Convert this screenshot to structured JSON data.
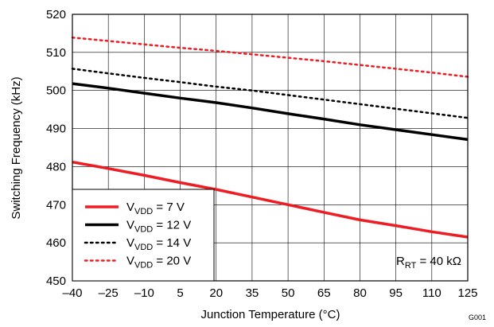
{
  "chart_data": {
    "type": "line",
    "title": "",
    "xlabel": "Junction Temperature (°C)",
    "ylabel": "Switching Frequency (kHz)",
    "xlim": [
      -40,
      125
    ],
    "ylim": [
      450,
      520
    ],
    "x_ticks": [
      -40,
      -25,
      -10,
      5,
      20,
      35,
      50,
      65,
      80,
      95,
      110,
      125
    ],
    "x_tick_labels": [
      "–40",
      "–25",
      "–10",
      "5",
      "20",
      "35",
      "50",
      "65",
      "80",
      "95",
      "110",
      "125"
    ],
    "y_ticks": [
      450,
      460,
      470,
      480,
      490,
      500,
      510,
      520
    ],
    "grid": true,
    "legend_position": "bottom-left",
    "series": [
      {
        "name_prefix": "V",
        "name_sub": "VDD",
        "name_suffix": " = 7 V",
        "style": "solid",
        "color": "#ee1c23",
        "width": "thick",
        "x": [
          -40,
          -25,
          -10,
          5,
          20,
          35,
          50,
          65,
          80,
          95,
          110,
          125
        ],
        "y": [
          481.2,
          479.5,
          477.7,
          475.8,
          474.0,
          472.0,
          470.0,
          468.0,
          466.0,
          464.5,
          462.9,
          461.5
        ]
      },
      {
        "name_prefix": "V",
        "name_sub": "VDD",
        "name_suffix": " = 12 V",
        "style": "solid",
        "color": "#000000",
        "width": "thick",
        "x": [
          -40,
          -25,
          -10,
          5,
          20,
          35,
          50,
          65,
          80,
          95,
          110,
          125
        ],
        "y": [
          501.8,
          500.6,
          499.3,
          498.0,
          496.8,
          495.4,
          493.9,
          492.5,
          491.0,
          489.7,
          488.4,
          487.1
        ]
      },
      {
        "name_prefix": "V",
        "name_sub": "VDD",
        "name_suffix": " = 14 V",
        "style": "dotted",
        "color": "#000000",
        "width": "medium",
        "x": [
          -40,
          -25,
          -10,
          5,
          20,
          35,
          50,
          65,
          80,
          95,
          110,
          125
        ],
        "y": [
          505.7,
          504.5,
          503.3,
          502.2,
          501.0,
          500.0,
          498.8,
          497.6,
          496.4,
          495.2,
          494.0,
          492.8
        ]
      },
      {
        "name_prefix": "V",
        "name_sub": "VDD",
        "name_suffix": " = 20 V",
        "style": "dotted",
        "color": "#ee1c23",
        "width": "medium",
        "x": [
          -40,
          -25,
          -10,
          5,
          20,
          35,
          50,
          65,
          80,
          95,
          110,
          125
        ],
        "y": [
          513.9,
          513.0,
          512.1,
          511.2,
          510.4,
          509.5,
          508.6,
          507.7,
          506.7,
          505.7,
          504.7,
          503.6
        ]
      }
    ],
    "annotation": {
      "prefix": "R",
      "sub": "RT",
      "suffix": " = 40 kΩ"
    },
    "figure_id": "G001"
  }
}
